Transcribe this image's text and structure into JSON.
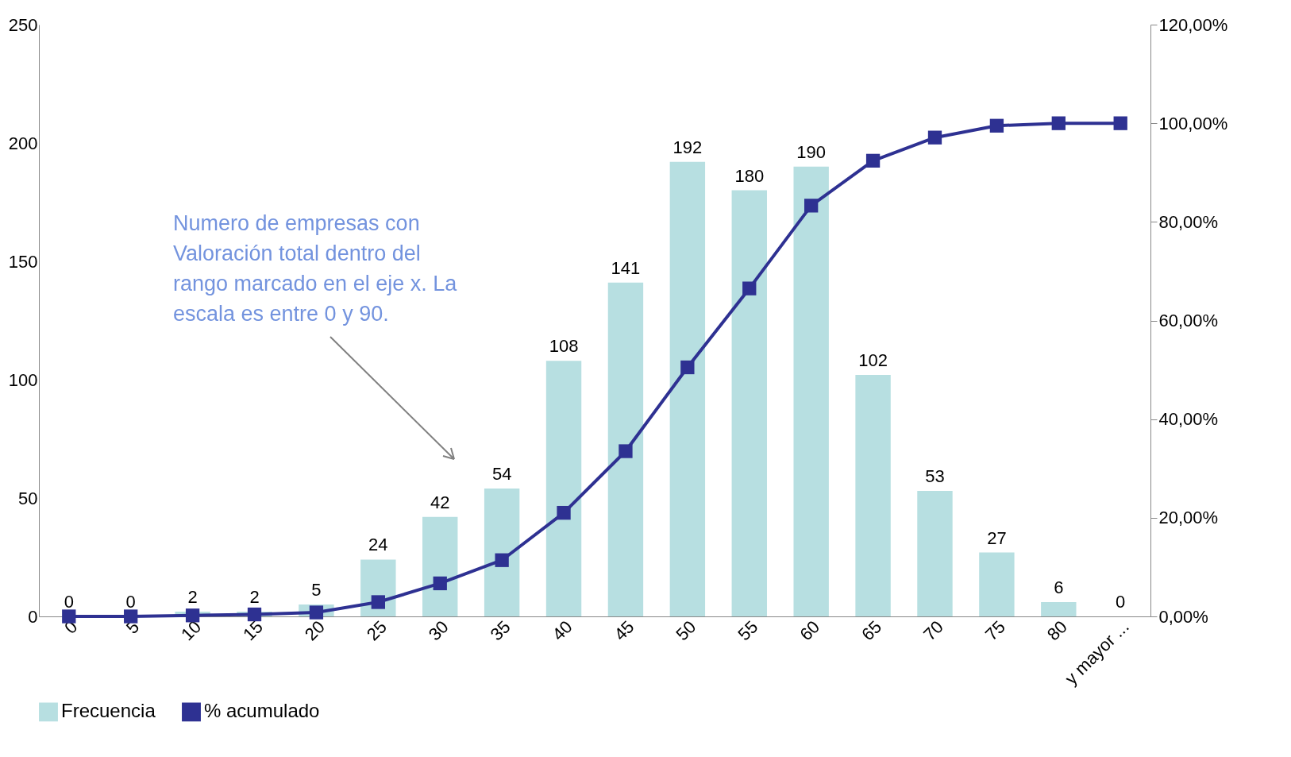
{
  "chart_data": {
    "type": "bar",
    "categories": [
      "0",
      "5",
      "10",
      "15",
      "20",
      "25",
      "30",
      "35",
      "40",
      "45",
      "50",
      "55",
      "60",
      "65",
      "70",
      "75",
      "80",
      "y mayor ..."
    ],
    "series": [
      {
        "name": "Frecuencia",
        "color": "#b7dfe1",
        "values": [
          0,
          0,
          2,
          2,
          5,
          24,
          42,
          54,
          108,
          141,
          192,
          180,
          190,
          102,
          53,
          27,
          6,
          0
        ],
        "value_labels": [
          "0",
          "0",
          "2",
          "2",
          "5",
          "24",
          "42",
          "54",
          "108",
          "141",
          "192",
          "180",
          "190",
          "102",
          "53",
          "27",
          "6",
          "0"
        ]
      },
      {
        "name": "% acumulado",
        "type": "line",
        "axis": "y2",
        "color": "#2e3192",
        "marker": "square",
        "values": [
          0,
          0,
          0.2,
          0.4,
          0.8,
          2.9,
          6.7,
          11.4,
          21.0,
          33.5,
          50.5,
          66.5,
          83.3,
          92.4,
          97.1,
          99.5,
          100,
          100
        ]
      }
    ],
    "ylim": [
      0,
      250
    ],
    "yticks": [
      0,
      50,
      100,
      150,
      200,
      250
    ],
    "y2lim": [
      0,
      120
    ],
    "y2ticks": [
      {
        "value": 0,
        "label": "0,00%"
      },
      {
        "value": 20,
        "label": "20,00%"
      },
      {
        "value": 40,
        "label": "40,00%"
      },
      {
        "value": 60,
        "label": "60,00%"
      },
      {
        "value": 80,
        "label": "80,00%"
      },
      {
        "value": 100,
        "label": "100,00%"
      },
      {
        "value": 120,
        "label": "120,00%"
      }
    ],
    "legend": "bottom",
    "grid": false,
    "annotations": [
      "Numero de empresas con Valoración total dentro del rango marcado en el eje x. La escala es entre 0 y 90."
    ]
  }
}
